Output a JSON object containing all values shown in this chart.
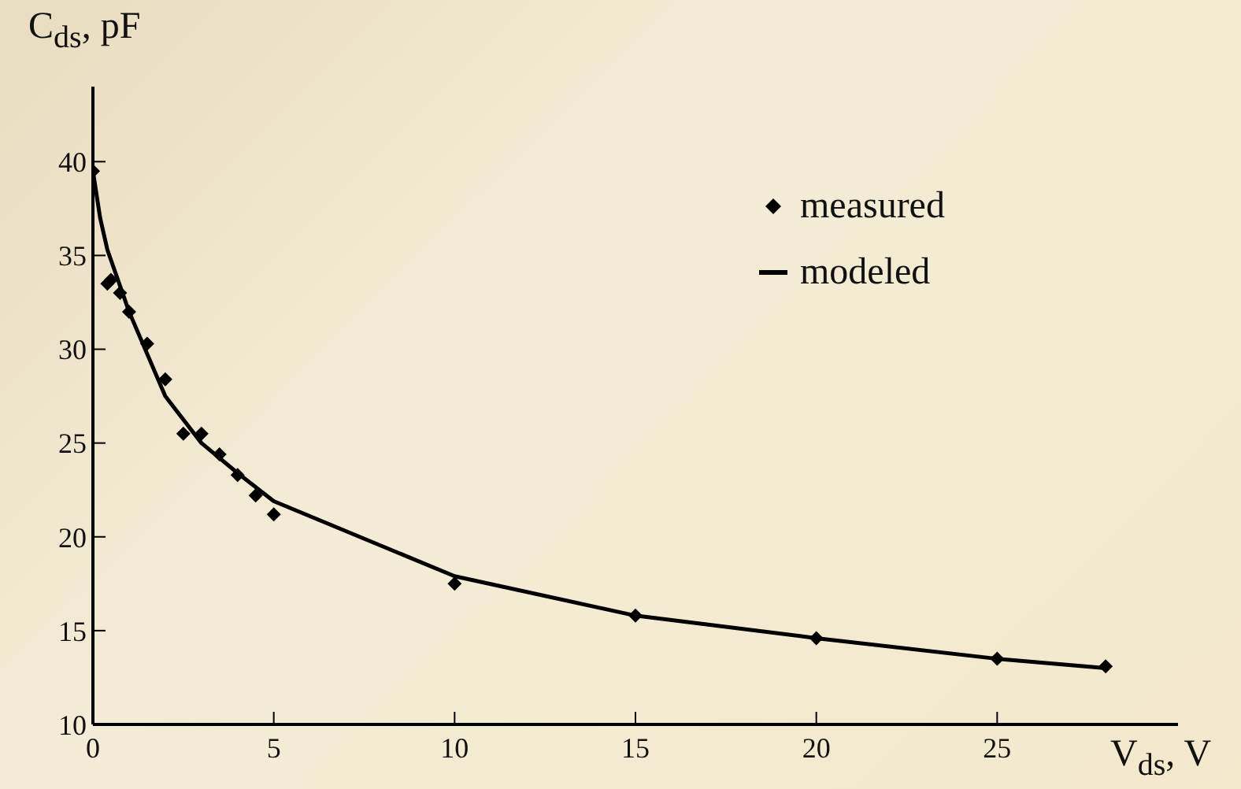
{
  "chart_data": {
    "type": "line",
    "xlabel": "V$_{ds}$, V",
    "ylabel": "C$_{ds}$, pF",
    "xlim": [
      0,
      30
    ],
    "ylim": [
      10,
      44
    ],
    "xticks": [
      0,
      5,
      10,
      15,
      20,
      25
    ],
    "yticks": [
      10,
      15,
      20,
      25,
      30,
      35,
      40
    ],
    "grid": false,
    "legend": "top right",
    "series": [
      {
        "name": "measured",
        "type": "scatter",
        "marker": "diamond",
        "color": "#000000",
        "x": [
          0,
          0.4,
          0.5,
          0.75,
          1,
          1.5,
          2,
          2.5,
          3,
          3.5,
          4,
          4.5,
          5,
          10,
          15,
          20,
          25,
          28
        ],
        "values": [
          39.5,
          33.5,
          33.7,
          33,
          32,
          30.3,
          28.4,
          25.5,
          25.5,
          24.4,
          23.3,
          22.2,
          21.2,
          17.5,
          15.8,
          14.6,
          13.5,
          13.1
        ]
      },
      {
        "name": "modeled",
        "line_style": "solid",
        "color": "#000000",
        "x": [
          0,
          0.2,
          0.4,
          1,
          2,
          3,
          4,
          5,
          10,
          15,
          20,
          25,
          28
        ],
        "values": [
          39.5,
          37,
          35.3,
          32,
          27.5,
          25,
          23.4,
          21.9,
          17.9,
          15.8,
          14.6,
          13.5,
          13
        ]
      }
    ]
  }
}
